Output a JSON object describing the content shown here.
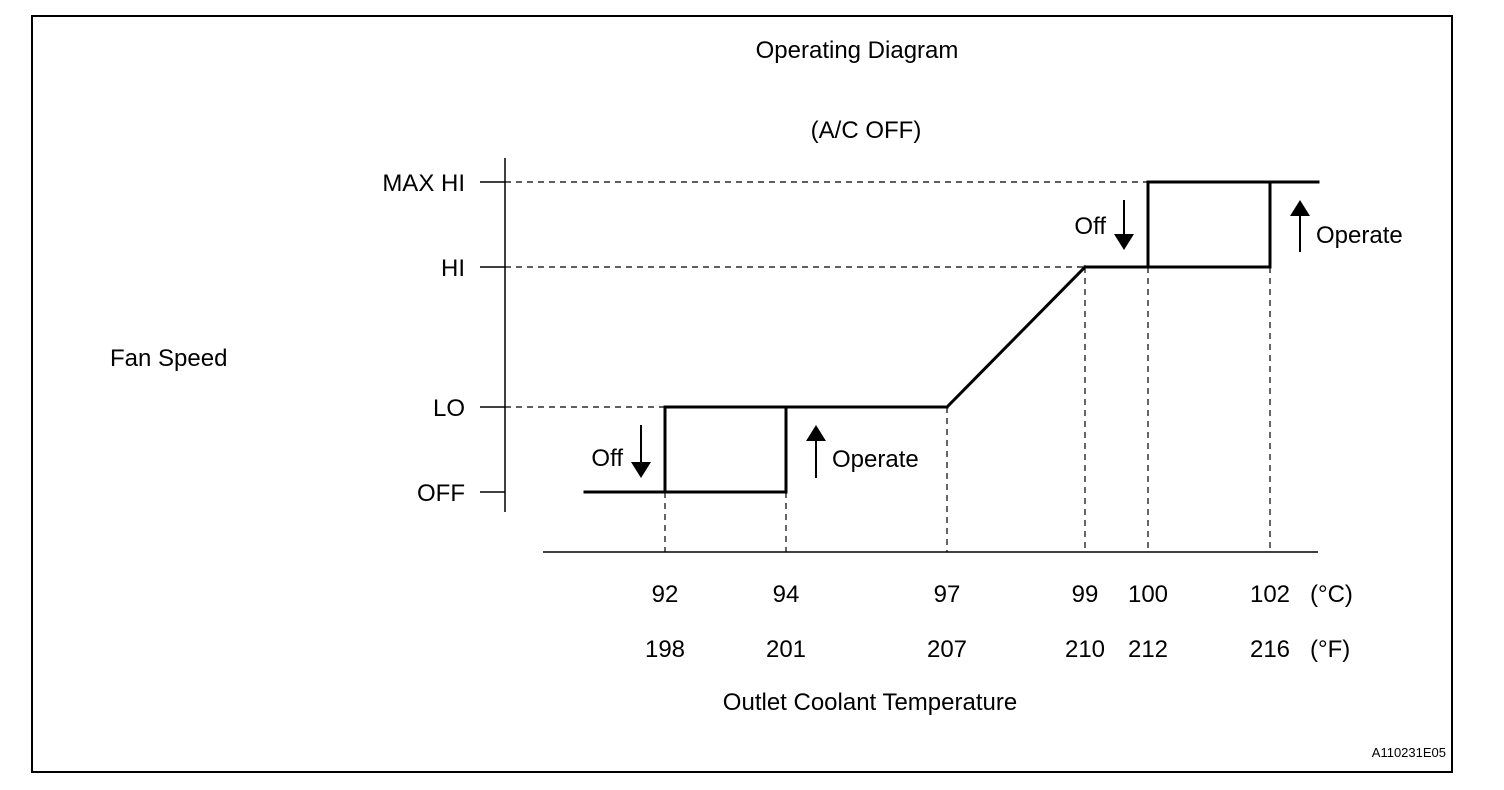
{
  "chart_data": {
    "type": "line",
    "title": "Operating Diagram",
    "subtitle": "(A/C OFF)",
    "ylabel": "Fan Speed",
    "xlabel": "Outlet Coolant Temperature",
    "y_levels": [
      "OFF",
      "LO",
      "HI",
      "MAX HI"
    ],
    "y_level_values": {
      "OFF": 0,
      "LO": 1,
      "HI": 2,
      "MAX HI": 3
    },
    "x_celsius": [
      92,
      94,
      97,
      99,
      100,
      102
    ],
    "x_fahrenheit": [
      198,
      201,
      207,
      210,
      212,
      216
    ],
    "x_unit_c": "(°C)",
    "x_unit_f": "(°F)",
    "xlim": [
      89,
      103.5
    ],
    "segments": [
      {
        "from": [
          90,
          0
        ],
        "to": [
          94,
          0
        ]
      },
      {
        "from": [
          92,
          0
        ],
        "to": [
          92,
          1
        ]
      },
      {
        "from": [
          94,
          0
        ],
        "to": [
          94,
          1
        ]
      },
      {
        "from": [
          92,
          1
        ],
        "to": [
          97,
          1
        ]
      },
      {
        "from": [
          97,
          1
        ],
        "to": [
          99,
          2
        ]
      },
      {
        "from": [
          99,
          2
        ],
        "to": [
          102,
          2
        ]
      },
      {
        "from": [
          100,
          2
        ],
        "to": [
          100,
          3
        ]
      },
      {
        "from": [
          102,
          2
        ],
        "to": [
          102,
          3
        ]
      },
      {
        "from": [
          100,
          3
        ],
        "to": [
          104,
          3
        ]
      }
    ],
    "annotations": [
      {
        "text": "Off",
        "direction": "down",
        "near_x": 92,
        "band": "OFF-LO"
      },
      {
        "text": "Operate",
        "direction": "up",
        "near_x": 94,
        "band": "OFF-LO"
      },
      {
        "text": "Off",
        "direction": "down",
        "near_x": 100,
        "band": "HI-MAX HI"
      },
      {
        "text": "Operate",
        "direction": "up",
        "near_x": 102,
        "band": "HI-MAX HI"
      }
    ],
    "figure_code": "A110231E05"
  }
}
